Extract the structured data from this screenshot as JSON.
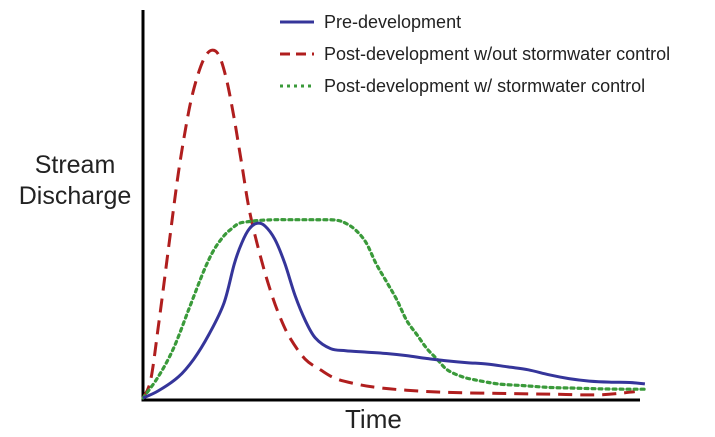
{
  "chart_data": {
    "type": "line",
    "title": "",
    "xlabel": "Time",
    "ylabel_lines": [
      "Stream",
      "Discharge"
    ],
    "xlim": [
      0,
      100
    ],
    "ylim": [
      0,
      100
    ],
    "grid": false,
    "ticks": false,
    "legend_position": "top-right",
    "series": [
      {
        "name": "Pre-development",
        "style": "solid",
        "color": "#35359a",
        "x": [
          0,
          3,
          7,
          10,
          13,
          16,
          18,
          19.5,
          21,
          22.5,
          24,
          26,
          28,
          30,
          32,
          34,
          37,
          40,
          44,
          48,
          52,
          56,
          60,
          64,
          68,
          72,
          76,
          80,
          84,
          88,
          92,
          96,
          99
        ],
        "y": [
          0,
          2,
          6,
          11,
          18,
          27,
          38,
          44,
          48,
          49.5,
          48.8,
          45,
          38,
          29,
          22,
          17,
          14,
          13.4,
          13,
          12.6,
          12,
          11.2,
          10.5,
          10,
          9.6,
          8.8,
          8,
          6.6,
          5.5,
          4.8,
          4.5,
          4.4,
          4
        ]
      },
      {
        "name": "Post-development w/out stormwater control",
        "style": "dashed",
        "color": "#b01e1e",
        "x": [
          0,
          1.5,
          3,
          5,
          7,
          9,
          10.5,
          12,
          13.5,
          15,
          16.5,
          18,
          19.5,
          21,
          23,
          25,
          27,
          29,
          32,
          35,
          38,
          42,
          46,
          52,
          60,
          70,
          80,
          90,
          97
        ],
        "y": [
          0,
          5,
          20,
          42,
          64,
          81,
          90,
          96,
          98.5,
          97,
          90,
          79,
          66,
          53,
          41,
          31,
          23,
          17,
          11,
          8,
          5.5,
          4,
          3,
          2.2,
          1.6,
          1.3,
          1.1,
          0.9,
          1.8
        ]
      },
      {
        "name": "Post-development w/ stormwater control",
        "style": "dotted",
        "color": "#3a9a3a",
        "x": [
          0,
          3,
          6,
          9,
          12,
          14,
          16,
          17.5,
          19,
          21,
          23,
          26,
          30,
          34,
          38,
          40,
          42,
          44,
          46,
          48,
          50,
          52,
          54,
          56,
          58,
          60,
          63,
          66,
          70,
          75,
          80,
          85,
          90,
          95,
          99
        ],
        "y": [
          0,
          6,
          14,
          25,
          36,
          42,
          46,
          48,
          49.5,
          50,
          50.3,
          50.5,
          50.5,
          50.5,
          50.4,
          49.5,
          47.5,
          44,
          38,
          33,
          28,
          22,
          18,
          14,
          11,
          8,
          6,
          5,
          4,
          3.5,
          3,
          2.8,
          2.6,
          2.5,
          2.5
        ]
      }
    ]
  }
}
